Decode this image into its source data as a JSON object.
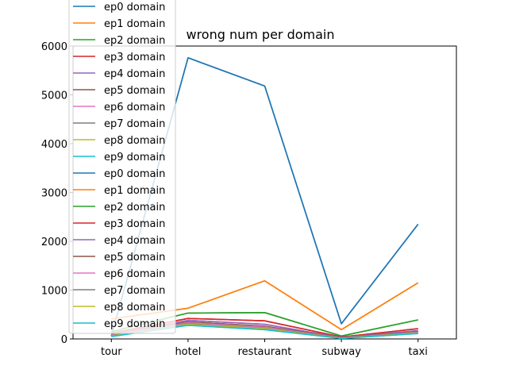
{
  "chart_data": {
    "type": "line",
    "title": "wrong num per domain",
    "xlabel": "",
    "ylabel": "",
    "categories": [
      "tour",
      "hotel",
      "restaurant",
      "subway",
      "taxi"
    ],
    "ylim": [
      0,
      6000
    ],
    "yticks": [
      0,
      1000,
      2000,
      3000,
      4000,
      5000,
      6000
    ],
    "grid": false,
    "legend_position": "upper-left",
    "series": [
      {
        "name": "ep0 domain",
        "color": "#1f77b4",
        "values": [
          60,
          5760,
          5180,
          310,
          2350
        ]
      },
      {
        "name": "ep1 domain",
        "color": "#ff7f0e",
        "values": [
          410,
          630,
          1190,
          190,
          1150
        ]
      },
      {
        "name": "ep2 domain",
        "color": "#2ca02c",
        "values": [
          150,
          530,
          540,
          60,
          390
        ]
      },
      {
        "name": "ep3 domain",
        "color": "#d62728",
        "values": [
          120,
          420,
          370,
          40,
          210
        ]
      },
      {
        "name": "ep4 domain",
        "color": "#9467bd",
        "values": [
          100,
          380,
          300,
          30,
          170
        ]
      },
      {
        "name": "ep5 domain",
        "color": "#8c564b",
        "values": [
          90,
          350,
          260,
          25,
          150
        ]
      },
      {
        "name": "ep6 domain",
        "color": "#e377c2",
        "values": [
          80,
          330,
          240,
          20,
          140
        ]
      },
      {
        "name": "ep7 domain",
        "color": "#7f7f7f",
        "values": [
          70,
          310,
          220,
          18,
          130
        ]
      },
      {
        "name": "ep8 domain",
        "color": "#bcbd22",
        "values": [
          60,
          300,
          210,
          15,
          120
        ]
      },
      {
        "name": "ep9 domain",
        "color": "#17becf",
        "values": [
          50,
          280,
          190,
          12,
          110
        ]
      },
      {
        "name": "ep0 domain",
        "color": "#1f77b4",
        "values": [
          60,
          5760,
          5180,
          310,
          2350
        ]
      },
      {
        "name": "ep1 domain",
        "color": "#ff7f0e",
        "values": [
          410,
          630,
          1190,
          190,
          1150
        ]
      },
      {
        "name": "ep2 domain",
        "color": "#2ca02c",
        "values": [
          150,
          530,
          540,
          60,
          390
        ]
      },
      {
        "name": "ep3 domain",
        "color": "#d62728",
        "values": [
          120,
          420,
          370,
          40,
          210
        ]
      },
      {
        "name": "ep4 domain",
        "color": "#9467bd",
        "values": [
          100,
          380,
          300,
          30,
          170
        ]
      },
      {
        "name": "ep5 domain",
        "color": "#8c564b",
        "values": [
          90,
          350,
          260,
          25,
          150
        ]
      },
      {
        "name": "ep6 domain",
        "color": "#e377c2",
        "values": [
          80,
          330,
          240,
          20,
          140
        ]
      },
      {
        "name": "ep7 domain",
        "color": "#7f7f7f",
        "values": [
          70,
          310,
          220,
          18,
          130
        ]
      },
      {
        "name": "ep8 domain",
        "color": "#bcbd22",
        "values": [
          60,
          300,
          210,
          15,
          120
        ]
      },
      {
        "name": "ep9 domain",
        "color": "#17becf",
        "values": [
          50,
          280,
          190,
          12,
          110
        ]
      }
    ]
  }
}
